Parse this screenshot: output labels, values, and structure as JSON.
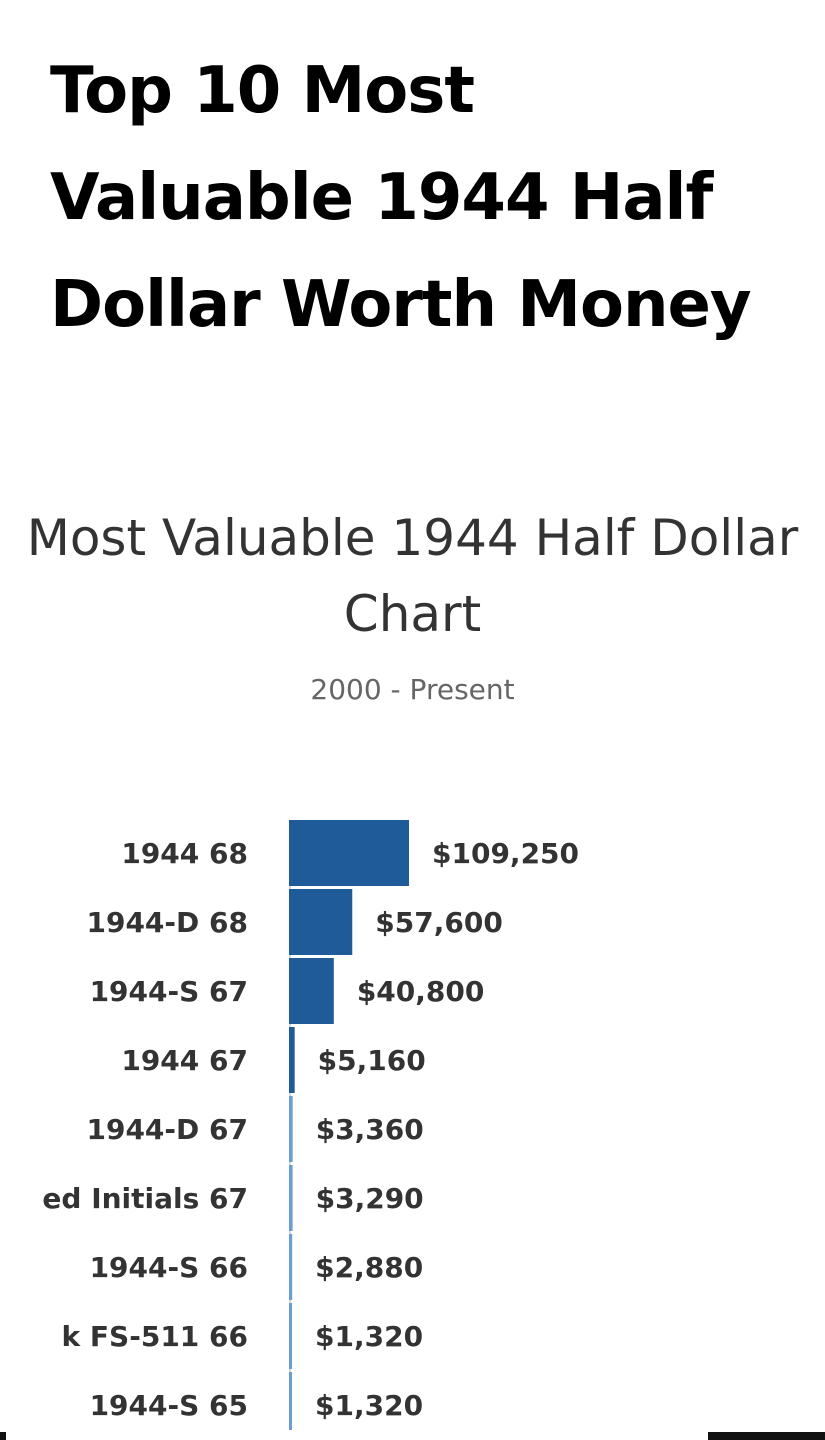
{
  "page": {
    "title": "Top 10 Most Valuable 1944 Half Dollar Worth Money"
  },
  "chart_data": {
    "type": "bar",
    "orientation": "horizontal",
    "title": "Most Valuable 1944 Half Dollar Chart",
    "subtitle": "2000 - Present",
    "categories": [
      "1944 68",
      "1944-D 68",
      "1944-S 67",
      "1944 67",
      "1944-D 67",
      "ed Initials 67",
      "1944-S 66",
      "k FS-511 66",
      "1944-S 65"
    ],
    "values": [
      109250,
      57600,
      40800,
      5160,
      3360,
      3290,
      2880,
      1320,
      1320
    ],
    "data_labels": [
      "$109,250",
      "$57,600",
      "$40,800",
      "$5,160",
      "$3,360",
      "$3,290",
      "$2,880",
      "$1,320",
      "$1,320"
    ],
    "colors": {
      "dark": "#1f5b99",
      "light": "#6b9ed0"
    },
    "color_threshold": 5000,
    "xlim": [
      0,
      109250
    ],
    "grid": false,
    "legend": "none"
  }
}
